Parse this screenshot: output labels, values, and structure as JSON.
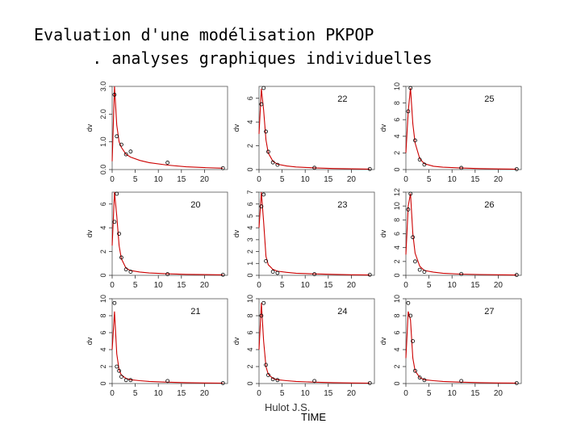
{
  "title": {
    "line1": "Evaluation d'une modélisation PKPOP",
    "line2": "      . analyses graphiques individuelles"
  },
  "footer": {
    "author": "Hulot J.S.",
    "xlabel": "TIME"
  },
  "colors": {
    "curve": "#cc0000",
    "points": "#000000",
    "frame": "#555555"
  },
  "chart_data": [
    {
      "type": "scatter",
      "panel_label": "",
      "ylabel": "dv",
      "xlim": [
        0,
        25
      ],
      "ylim": [
        0,
        3
      ],
      "xticks": [
        0,
        5,
        10,
        15,
        20
      ],
      "yticks": [
        0,
        1,
        2,
        3
      ],
      "yticklabels": [
        "0.0",
        "1.0",
        "2.0",
        "3.0"
      ],
      "points_x": [
        0.5,
        1,
        2,
        3,
        4,
        12,
        24
      ],
      "points_y": [
        2.7,
        1.2,
        0.9,
        0.55,
        0.65,
        0.25,
        0.05
      ],
      "fit_x": [
        0,
        0.5,
        1,
        1.5,
        2,
        3,
        4,
        6,
        8,
        12,
        16,
        20,
        24
      ],
      "fit_y": [
        0.3,
        3.0,
        1.6,
        1.0,
        0.8,
        0.55,
        0.45,
        0.33,
        0.25,
        0.16,
        0.1,
        0.07,
        0.05
      ]
    },
    {
      "type": "scatter",
      "panel_label": "22",
      "ylabel": "dv",
      "xlim": [
        0,
        25
      ],
      "ylim": [
        0,
        7
      ],
      "xticks": [
        0,
        5,
        10,
        15,
        20
      ],
      "yticks": [
        0,
        2,
        4,
        6
      ],
      "yticklabels": [
        "0",
        "2",
        "4",
        "6"
      ],
      "points_x": [
        0.5,
        1,
        1.5,
        2,
        3,
        4,
        12,
        24
      ],
      "points_y": [
        5.5,
        7,
        3.2,
        1.5,
        0.6,
        0.4,
        0.15,
        0.05
      ],
      "fit_x": [
        0,
        0.5,
        1,
        1.5,
        2,
        3,
        4,
        6,
        8,
        12,
        16,
        20,
        24
      ],
      "fit_y": [
        3.0,
        6.8,
        5.0,
        2.5,
        1.4,
        0.7,
        0.45,
        0.3,
        0.22,
        0.14,
        0.09,
        0.06,
        0.04
      ]
    },
    {
      "type": "scatter",
      "panel_label": "25",
      "ylabel": "dv",
      "xlim": [
        0,
        25
      ],
      "ylim": [
        0,
        10
      ],
      "xticks": [
        0,
        5,
        10,
        15,
        20
      ],
      "yticks": [
        0,
        2,
        4,
        6,
        8,
        10
      ],
      "yticklabels": [
        "0",
        "2",
        "4",
        "6",
        "8",
        "10"
      ],
      "points_x": [
        0.5,
        1,
        2,
        3,
        4,
        12,
        24
      ],
      "points_y": [
        7,
        9.8,
        3.5,
        1.2,
        0.6,
        0.2,
        0.05
      ],
      "fit_x": [
        0,
        0.5,
        1,
        1.5,
        2,
        3,
        4,
        6,
        8,
        12,
        16,
        20,
        24
      ],
      "fit_y": [
        2.0,
        7.0,
        9.8,
        5.5,
        3.2,
        1.3,
        0.7,
        0.4,
        0.28,
        0.18,
        0.12,
        0.08,
        0.05
      ]
    },
    {
      "type": "scatter",
      "panel_label": "20",
      "ylabel": "dv",
      "xlim": [
        0,
        25
      ],
      "ylim": [
        0,
        7
      ],
      "xticks": [
        0,
        5,
        10,
        15,
        20
      ],
      "yticks": [
        0,
        2,
        4,
        6
      ],
      "yticklabels": [
        "0",
        "2",
        "4",
        "6"
      ],
      "points_x": [
        0.5,
        1,
        1.5,
        2,
        3,
        4,
        12,
        24
      ],
      "points_y": [
        4.5,
        7,
        3.5,
        1.5,
        0.5,
        0.3,
        0.1,
        0.05
      ],
      "fit_x": [
        0,
        0.5,
        1,
        1.5,
        2,
        3,
        4,
        6,
        8,
        12,
        16,
        20,
        24
      ],
      "fit_y": [
        2.5,
        7.0,
        5.0,
        2.5,
        1.4,
        0.6,
        0.4,
        0.28,
        0.2,
        0.13,
        0.08,
        0.06,
        0.04
      ]
    },
    {
      "type": "scatter",
      "panel_label": "23",
      "ylabel": "dv",
      "xlim": [
        0,
        25
      ],
      "ylim": [
        0,
        7
      ],
      "xticks": [
        0,
        5,
        10,
        15,
        20
      ],
      "yticks": [
        0,
        1,
        2,
        3,
        4,
        5,
        6,
        7
      ],
      "yticklabels": [
        "0",
        "1",
        "2",
        "3",
        "4",
        "5",
        "6",
        "7"
      ],
      "points_x": [
        0.5,
        1,
        1.5,
        3,
        4,
        12,
        24
      ],
      "points_y": [
        5.8,
        6.8,
        1.2,
        0.3,
        0.2,
        0.1,
        0.05
      ],
      "fit_x": [
        0,
        0.5,
        1,
        1.5,
        2,
        3,
        4,
        6,
        8,
        12,
        16,
        20,
        24
      ],
      "fit_y": [
        4.0,
        7.0,
        4.5,
        1.6,
        0.9,
        0.5,
        0.35,
        0.25,
        0.18,
        0.12,
        0.08,
        0.05,
        0.03
      ]
    },
    {
      "type": "scatter",
      "panel_label": "26",
      "ylabel": "dv",
      "xlim": [
        0,
        25
      ],
      "ylim": [
        0,
        12
      ],
      "xticks": [
        0,
        5,
        10,
        15,
        20
      ],
      "yticks": [
        0,
        2,
        4,
        6,
        8,
        10,
        12
      ],
      "yticklabels": [
        "0",
        "2",
        "4",
        "6",
        "8",
        "10",
        "12"
      ],
      "points_x": [
        0.5,
        1,
        1.5,
        2,
        3,
        4,
        12,
        24
      ],
      "points_y": [
        9.5,
        11.8,
        5.5,
        2,
        0.8,
        0.5,
        0.2,
        0.05
      ],
      "fit_x": [
        0,
        0.5,
        1,
        1.5,
        2,
        3,
        4,
        6,
        8,
        12,
        16,
        20,
        24
      ],
      "fit_y": [
        3.0,
        10.0,
        11.8,
        6.0,
        3.2,
        1.3,
        0.7,
        0.45,
        0.3,
        0.18,
        0.12,
        0.08,
        0.05
      ]
    },
    {
      "type": "scatter",
      "panel_label": "21",
      "ylabel": "dv",
      "xlim": [
        0,
        25
      ],
      "ylim": [
        0,
        10
      ],
      "xticks": [
        0,
        5,
        10,
        15,
        20
      ],
      "yticks": [
        0,
        2,
        4,
        6,
        8,
        10
      ],
      "yticklabels": [
        "0",
        "2",
        "4",
        "6",
        "8",
        "10"
      ],
      "points_x": [
        0.5,
        1,
        1.5,
        2,
        3,
        4,
        12,
        24
      ],
      "points_y": [
        9.5,
        2,
        1.5,
        0.8,
        0.4,
        0.4,
        0.3,
        0.05
      ],
      "fit_x": [
        0,
        0.5,
        1,
        1.5,
        2,
        3,
        4,
        6,
        8,
        12,
        16,
        20,
        24
      ],
      "fit_y": [
        4.0,
        8.5,
        3.5,
        1.6,
        1.0,
        0.6,
        0.45,
        0.33,
        0.25,
        0.16,
        0.1,
        0.07,
        0.05
      ]
    },
    {
      "type": "scatter",
      "panel_label": "24",
      "ylabel": "dv",
      "xlim": [
        0,
        25
      ],
      "ylim": [
        0,
        10
      ],
      "xticks": [
        0,
        5,
        10,
        15,
        20
      ],
      "yticks": [
        0,
        2,
        4,
        6,
        8,
        10
      ],
      "yticklabels": [
        "0",
        "2",
        "4",
        "6",
        "8",
        "10"
      ],
      "points_x": [
        0.5,
        1,
        1.5,
        2,
        3,
        4,
        12,
        24
      ],
      "points_y": [
        8,
        9.5,
        2.2,
        1,
        0.5,
        0.4,
        0.3,
        0.05
      ],
      "fit_x": [
        0,
        0.5,
        1,
        1.5,
        2,
        3,
        4,
        6,
        8,
        12,
        16,
        20,
        24
      ],
      "fit_y": [
        4.0,
        9.5,
        5.0,
        2.0,
        1.1,
        0.6,
        0.45,
        0.33,
        0.25,
        0.16,
        0.1,
        0.07,
        0.05
      ]
    },
    {
      "type": "scatter",
      "panel_label": "27",
      "ylabel": "dv",
      "xlim": [
        0,
        25
      ],
      "ylim": [
        0,
        10
      ],
      "xticks": [
        0,
        5,
        10,
        15,
        20
      ],
      "yticks": [
        0,
        2,
        4,
        6,
        8,
        10
      ],
      "yticklabels": [
        "0",
        "2",
        "4",
        "6",
        "8",
        "10"
      ],
      "points_x": [
        0.5,
        1,
        1.5,
        2,
        3,
        4,
        12,
        24
      ],
      "points_y": [
        9.5,
        8,
        5,
        1.5,
        0.7,
        0.4,
        0.3,
        0.05
      ],
      "fit_x": [
        0,
        0.5,
        1,
        1.5,
        2,
        3,
        4,
        6,
        8,
        12,
        16,
        20,
        24
      ],
      "fit_y": [
        3.0,
        8.5,
        7.5,
        3.0,
        1.5,
        0.7,
        0.45,
        0.33,
        0.25,
        0.16,
        0.1,
        0.07,
        0.05
      ]
    }
  ]
}
